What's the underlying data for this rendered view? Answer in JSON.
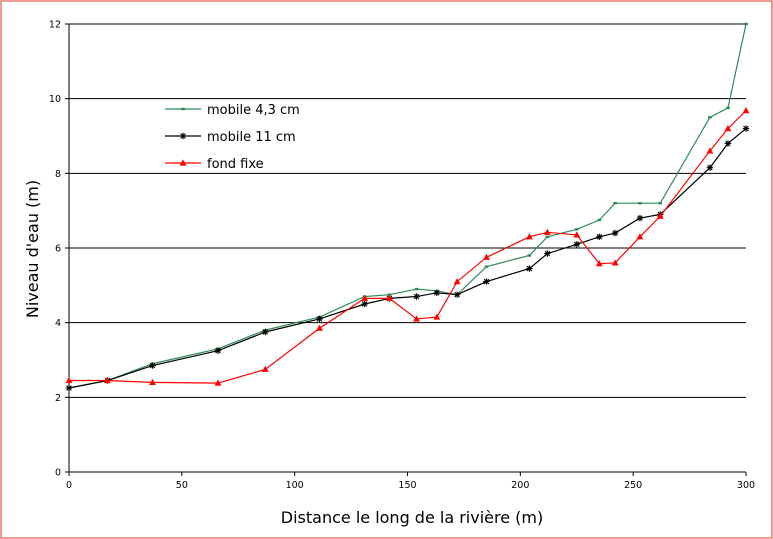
{
  "chart_data": {
    "type": "line",
    "xlabel": "Distance le long de la rivière (m)",
    "ylabel": "Niveau d'eau  (m)",
    "xlim": [
      0,
      300
    ],
    "ylim": [
      0,
      12
    ],
    "xticks": [
      0,
      50,
      100,
      150,
      200,
      250,
      300
    ],
    "yticks": [
      0,
      2,
      4,
      6,
      8,
      10,
      12
    ],
    "grid": "horizontal",
    "legend_position": "top-left",
    "series": [
      {
        "name": "mobile 4,3 cm",
        "color": "#2e8b57",
        "marker": "dash",
        "x": [
          0,
          17,
          37,
          66,
          87,
          111,
          131,
          142,
          154,
          163,
          172,
          185,
          204,
          212,
          225,
          235,
          242,
          253,
          262,
          284,
          292,
          300
        ],
        "y": [
          2.25,
          2.45,
          2.9,
          3.3,
          3.8,
          4.15,
          4.7,
          4.75,
          4.9,
          4.85,
          4.75,
          5.5,
          5.8,
          6.3,
          6.5,
          6.75,
          7.2,
          7.2,
          7.2,
          9.5,
          9.75,
          12.0
        ]
      },
      {
        "name": "mobile 11 cm",
        "color": "#000000",
        "marker": "star",
        "x": [
          0,
          17,
          37,
          66,
          87,
          111,
          131,
          142,
          154,
          163,
          172,
          185,
          204,
          212,
          225,
          235,
          242,
          253,
          262,
          284,
          292,
          300
        ],
        "y": [
          2.25,
          2.45,
          2.85,
          3.25,
          3.75,
          4.1,
          4.5,
          4.65,
          4.7,
          4.8,
          4.75,
          5.1,
          5.45,
          5.85,
          6.1,
          6.3,
          6.4,
          6.8,
          6.9,
          8.15,
          8.8,
          9.2
        ]
      },
      {
        "name": "fond fixe",
        "color": "#ff0000",
        "marker": "triangle",
        "x": [
          0,
          17,
          37,
          66,
          87,
          111,
          131,
          142,
          154,
          163,
          172,
          185,
          204,
          212,
          225,
          235,
          242,
          253,
          262,
          284,
          292,
          300
        ],
        "y": [
          2.45,
          2.45,
          2.4,
          2.38,
          2.75,
          3.85,
          4.65,
          4.65,
          4.1,
          4.15,
          5.1,
          5.75,
          6.3,
          6.42,
          6.35,
          5.58,
          5.6,
          6.3,
          6.85,
          8.6,
          9.2,
          9.68
        ]
      }
    ]
  }
}
